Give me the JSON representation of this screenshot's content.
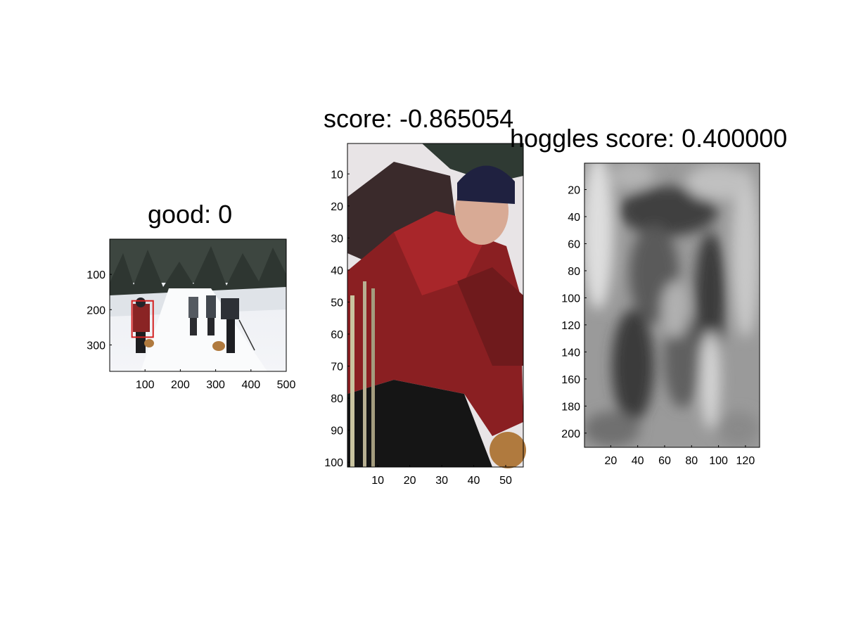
{
  "chart_data": [
    {
      "type": "image",
      "title": "good: 0",
      "xticks": [
        100,
        200,
        300,
        400,
        500
      ],
      "yticks": [
        100,
        200,
        300
      ],
      "xlim": [
        0,
        500
      ],
      "ylim": [
        0,
        375
      ],
      "detection_box": {
        "x0": 63,
        "y0": 175,
        "x1": 123,
        "y1": 278,
        "color": "#d42020"
      },
      "content": "snowy forest trail with hikers and dogs"
    },
    {
      "type": "image",
      "title": "score: -0.865054",
      "xticks": [
        10,
        20,
        30,
        40,
        50
      ],
      "yticks": [
        10,
        20,
        30,
        40,
        50,
        60,
        70,
        80,
        90,
        100
      ],
      "xlim": [
        0.5,
        55.5
      ],
      "ylim": [
        0.5,
        101.5
      ],
      "content": "cropped hiker in red jacket"
    },
    {
      "type": "heatmap",
      "title": "hoggles score: 0.400000",
      "xticks": [
        20,
        40,
        60,
        80,
        100,
        120
      ],
      "yticks": [
        20,
        40,
        60,
        80,
        100,
        120,
        140,
        160,
        180,
        200
      ],
      "xlim": [
        0.5,
        130.5
      ],
      "ylim": [
        0.5,
        210.5
      ],
      "colormap": "grayscale"
    }
  ]
}
